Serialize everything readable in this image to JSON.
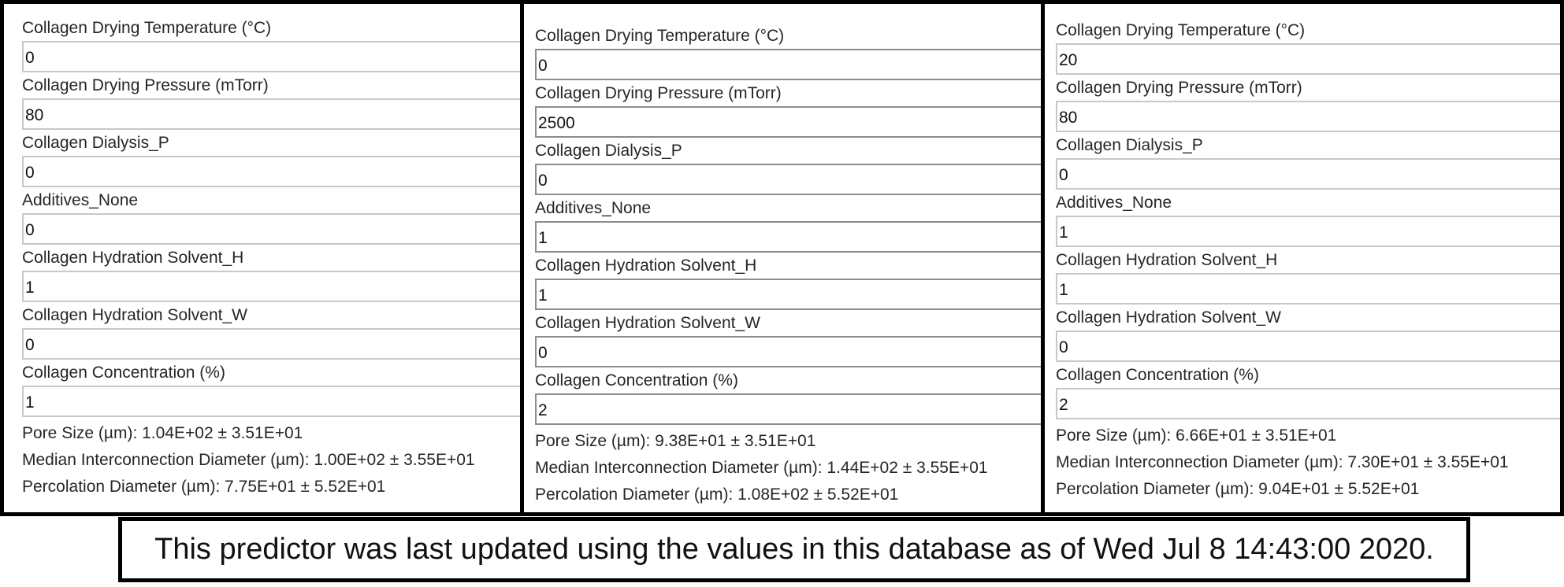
{
  "panels": [
    {
      "fields": [
        {
          "label": "Collagen Drying Temperature (°C)",
          "value": "0"
        },
        {
          "label": "Collagen Drying Pressure (mTorr)",
          "value": "80"
        },
        {
          "label": "Collagen Dialysis_P",
          "value": "0"
        },
        {
          "label": "Additives_None",
          "value": "0"
        },
        {
          "label": "Collagen Hydration Solvent_H",
          "value": "1"
        },
        {
          "label": "Collagen Hydration Solvent_W",
          "value": "0"
        },
        {
          "label": "Collagen Concentration (%)",
          "value": "1"
        }
      ],
      "results": [
        "Pore Size (µm): 1.04E+02 ± 3.51E+01",
        "Median Interconnection Diameter (µm): 1.00E+02 ± 3.55E+01",
        "Percolation Diameter (µm): 7.75E+01 ± 5.52E+01"
      ]
    },
    {
      "fields": [
        {
          "label": "Collagen Drying Temperature (°C)",
          "value": "0"
        },
        {
          "label": "Collagen Drying Pressure (mTorr)",
          "value": "2500"
        },
        {
          "label": "Collagen Dialysis_P",
          "value": "0"
        },
        {
          "label": "Additives_None",
          "value": "1"
        },
        {
          "label": "Collagen Hydration Solvent_H",
          "value": "1"
        },
        {
          "label": "Collagen Hydration Solvent_W",
          "value": "0"
        },
        {
          "label": "Collagen Concentration (%)",
          "value": "2"
        }
      ],
      "results": [
        "Pore Size (µm): 9.38E+01 ± 3.51E+01",
        "Median Interconnection Diameter (µm): 1.44E+02 ± 3.55E+01",
        "Percolation Diameter (µm): 1.08E+02 ± 5.52E+01"
      ]
    },
    {
      "fields": [
        {
          "label": "Collagen Drying Temperature (°C)",
          "value": "20"
        },
        {
          "label": "Collagen Drying Pressure (mTorr)",
          "value": "80"
        },
        {
          "label": "Collagen Dialysis_P",
          "value": "0"
        },
        {
          "label": "Additives_None",
          "value": "1"
        },
        {
          "label": "Collagen Hydration Solvent_H",
          "value": "1"
        },
        {
          "label": "Collagen Hydration Solvent_W",
          "value": "0"
        },
        {
          "label": "Collagen Concentration (%)",
          "value": "2"
        }
      ],
      "results": [
        "Pore Size (µm): 6.66E+01 ± 3.51E+01",
        "Median Interconnection Diameter (µm): 7.30E+01 ± 3.55E+01",
        "Percolation Diameter (µm): 9.04E+01 ± 5.52E+01"
      ]
    }
  ],
  "footer": {
    "text": "This predictor was last updated using the values in this database as of Wed Jul 8 14:43:00 2020."
  }
}
